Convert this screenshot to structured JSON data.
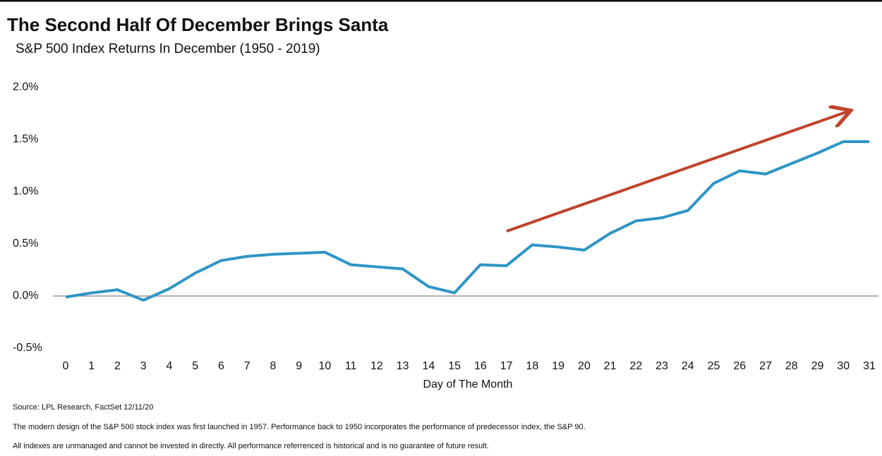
{
  "chart_data": {
    "type": "line",
    "title": "The Second Half Of December Brings Santa",
    "subtitle": "S&P 500 Index Returns In December (1950 - 2019)",
    "x_label": "Day of The Month",
    "x": [
      0,
      1,
      2,
      3,
      4,
      5,
      6,
      7,
      8,
      9,
      10,
      11,
      12,
      13,
      14,
      15,
      16,
      17,
      18,
      19,
      20,
      21,
      22,
      23,
      24,
      25,
      26,
      27,
      28,
      29,
      30,
      31
    ],
    "series": [
      {
        "name": "S&P 500 Index Returns",
        "color": "#2e95c5",
        "values": [
          -0.01,
          0.03,
          0.06,
          -0.04,
          0.07,
          0.22,
          0.34,
          0.38,
          0.4,
          0.41,
          0.42,
          0.3,
          0.28,
          0.26,
          0.09,
          0.03,
          0.3,
          0.29,
          0.49,
          0.47,
          0.44,
          0.6,
          0.72,
          0.75,
          0.82,
          1.08,
          1.2,
          1.17,
          1.27,
          1.37,
          1.48,
          1.48
        ]
      }
    ],
    "xlim": [
      0,
      31
    ],
    "xticks": [
      0,
      1,
      2,
      3,
      4,
      5,
      6,
      7,
      8,
      9,
      10,
      11,
      12,
      13,
      14,
      15,
      16,
      17,
      18,
      19,
      20,
      21,
      22,
      23,
      24,
      25,
      26,
      27,
      28,
      29,
      30,
      31
    ],
    "ylim": [
      -0.5,
      2.0
    ],
    "yticks": [
      {
        "value": -0.5,
        "label": "-0.5%"
      },
      {
        "value": 0,
        "label": "0.0%"
      },
      {
        "value": 0.5,
        "label": "0.5%"
      },
      {
        "value": 1.0,
        "label": "1.0%"
      },
      {
        "value": 1.5,
        "label": "1.5%"
      },
      {
        "value": 2.0,
        "label": "2.0%"
      }
    ],
    "notes": [
      "Source: LPL Research, FactSet 12/11/20",
      "The modern design of the S&P 500 stock index was first launched in 1957. Performance back to 1950 incorporates the performance of predecessor index, the S&P 90.",
      "All indexes are unmanaged and cannot be invested in directly. All performance referrenced is historical and is no guarantee of future result."
    ]
  }
}
